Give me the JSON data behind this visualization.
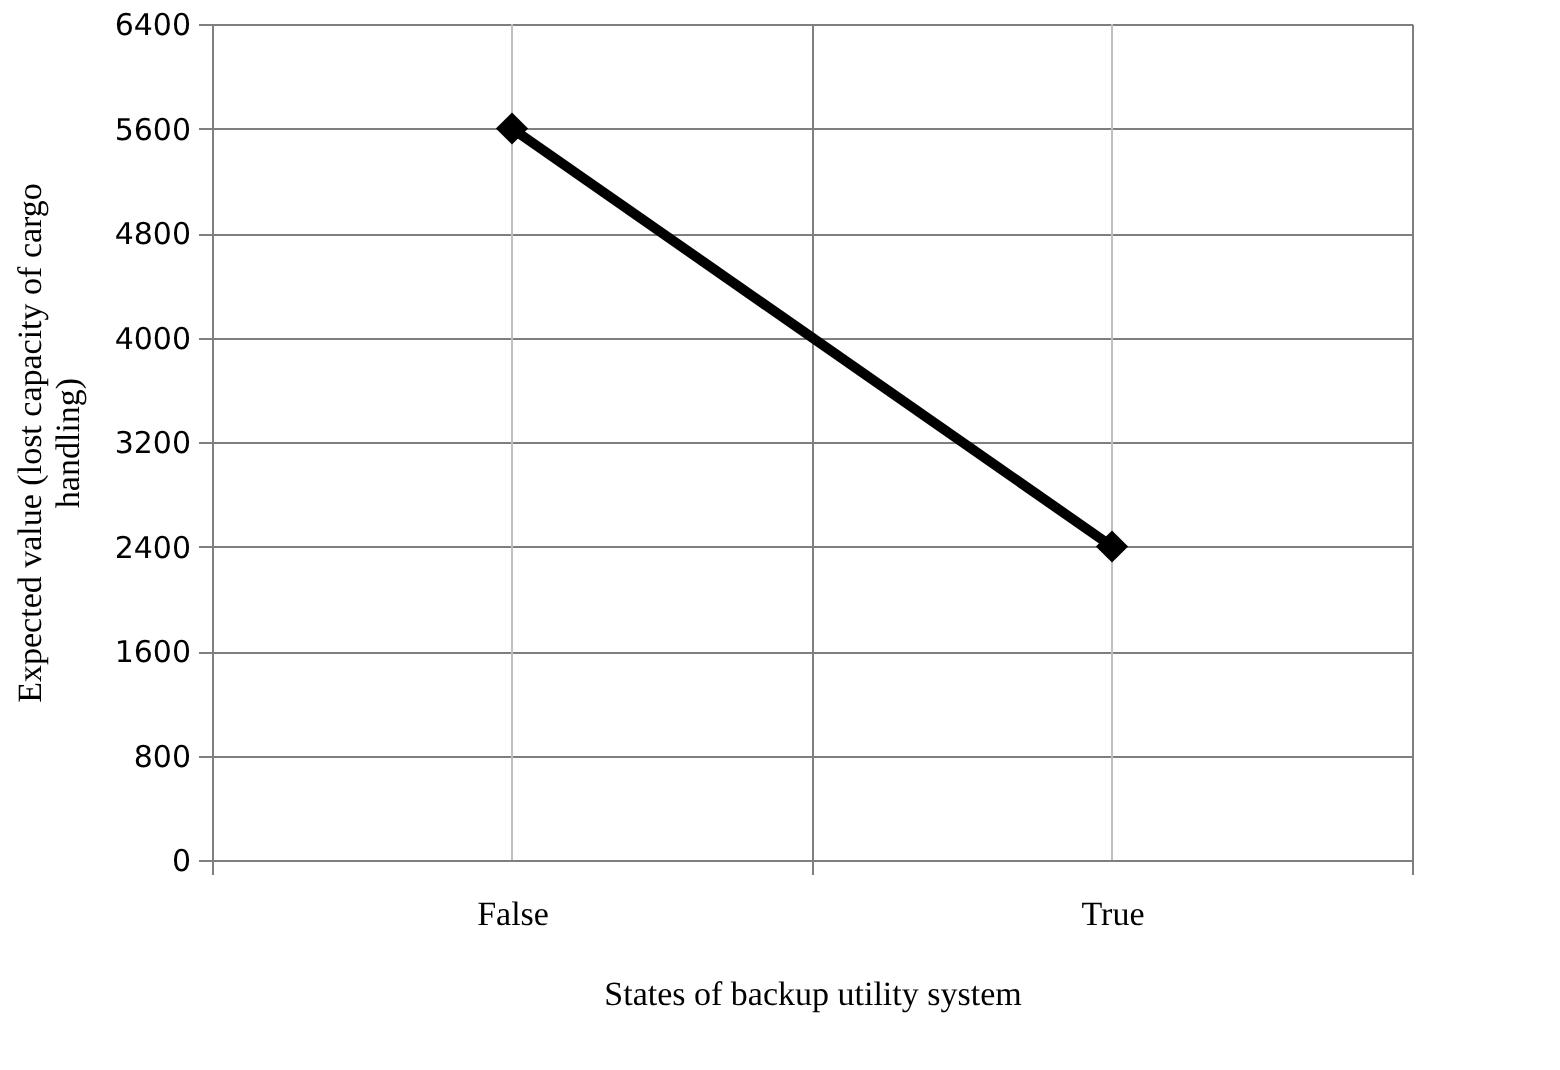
{
  "chart_data": {
    "type": "line",
    "xlabel": "States of backup utility system",
    "ylabel": "Expected value (lost capacity of cargo handling)",
    "categories": [
      "False",
      "True"
    ],
    "series": [
      {
        "color": "#000000",
        "values": [
          5600,
          2400
        ]
      }
    ],
    "ylim": [
      0,
      6400
    ],
    "yticks": [
      0,
      800,
      1600,
      2400,
      3200,
      4000,
      4800,
      5600,
      6400
    ],
    "grid": true,
    "marker": "diamond",
    "line_style": "solid"
  }
}
